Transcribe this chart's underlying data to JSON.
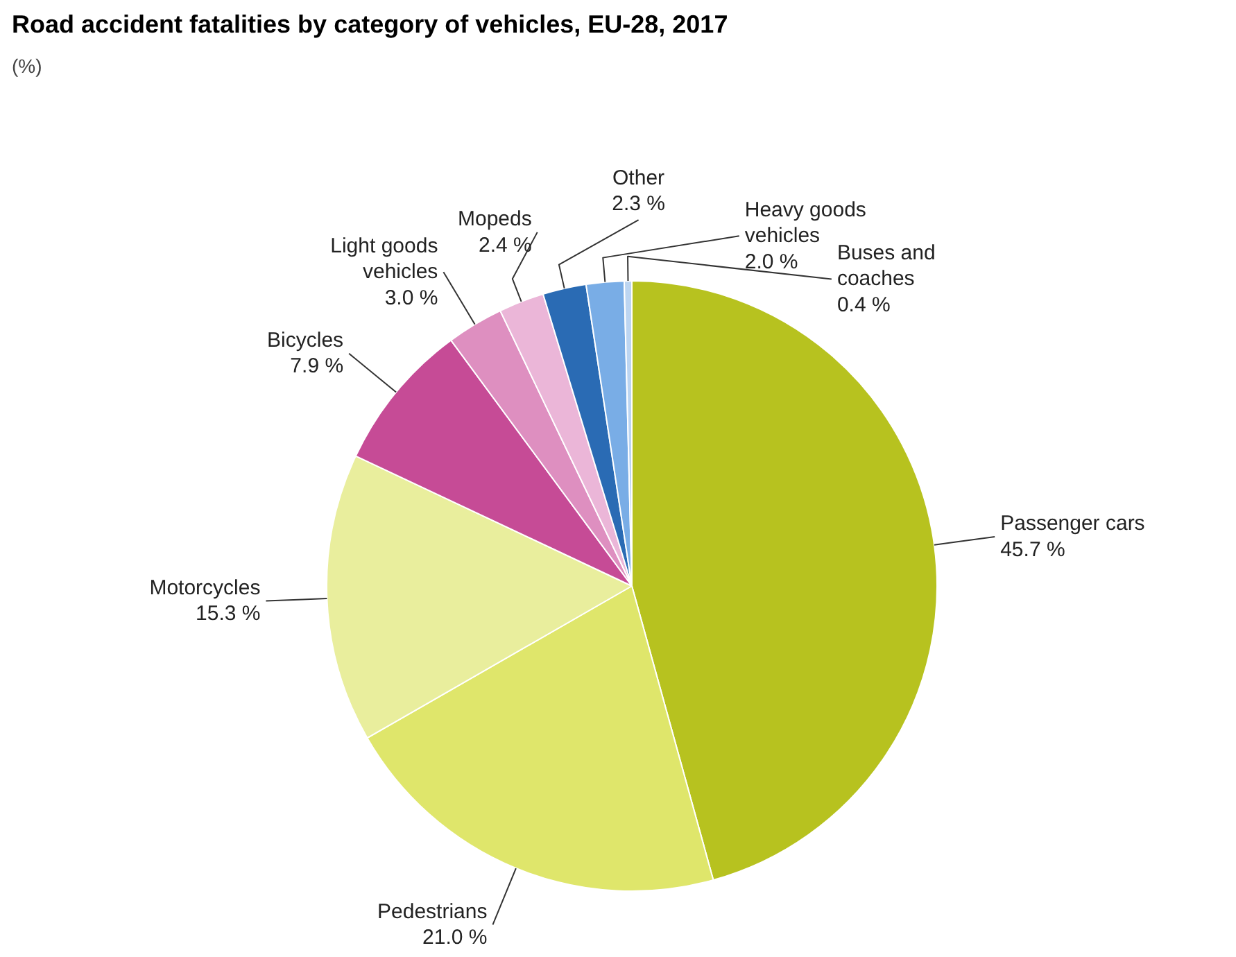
{
  "chart_data": {
    "type": "pie",
    "title": "Road accident fatalities by category of vehicles, EU-28, 2017",
    "subtitle": "(%)",
    "categories": [
      "Passenger cars",
      "Pedestrians",
      "Motorcycles",
      "Bicycles",
      "Light goods\nvehicles",
      "Mopeds",
      "Other",
      "Heavy goods\nvehicles",
      "Buses and\ncoaches"
    ],
    "values": [
      45.7,
      21.0,
      15.3,
      7.9,
      3.0,
      2.4,
      2.3,
      2.0,
      0.4
    ],
    "value_labels": [
      "45.7 %",
      "21.0 %",
      "15.3 %",
      "7.9 %",
      "3.0 %",
      "2.4 %",
      "2.3 %",
      "2.0 %",
      "0.4 %"
    ],
    "colors": [
      "#b7c21f",
      "#dfe66b",
      "#e9ee9d",
      "#c64b96",
      "#de8fc0",
      "#ebb6d8",
      "#2a6bb4",
      "#79ade6",
      "#bcd5f1"
    ]
  }
}
